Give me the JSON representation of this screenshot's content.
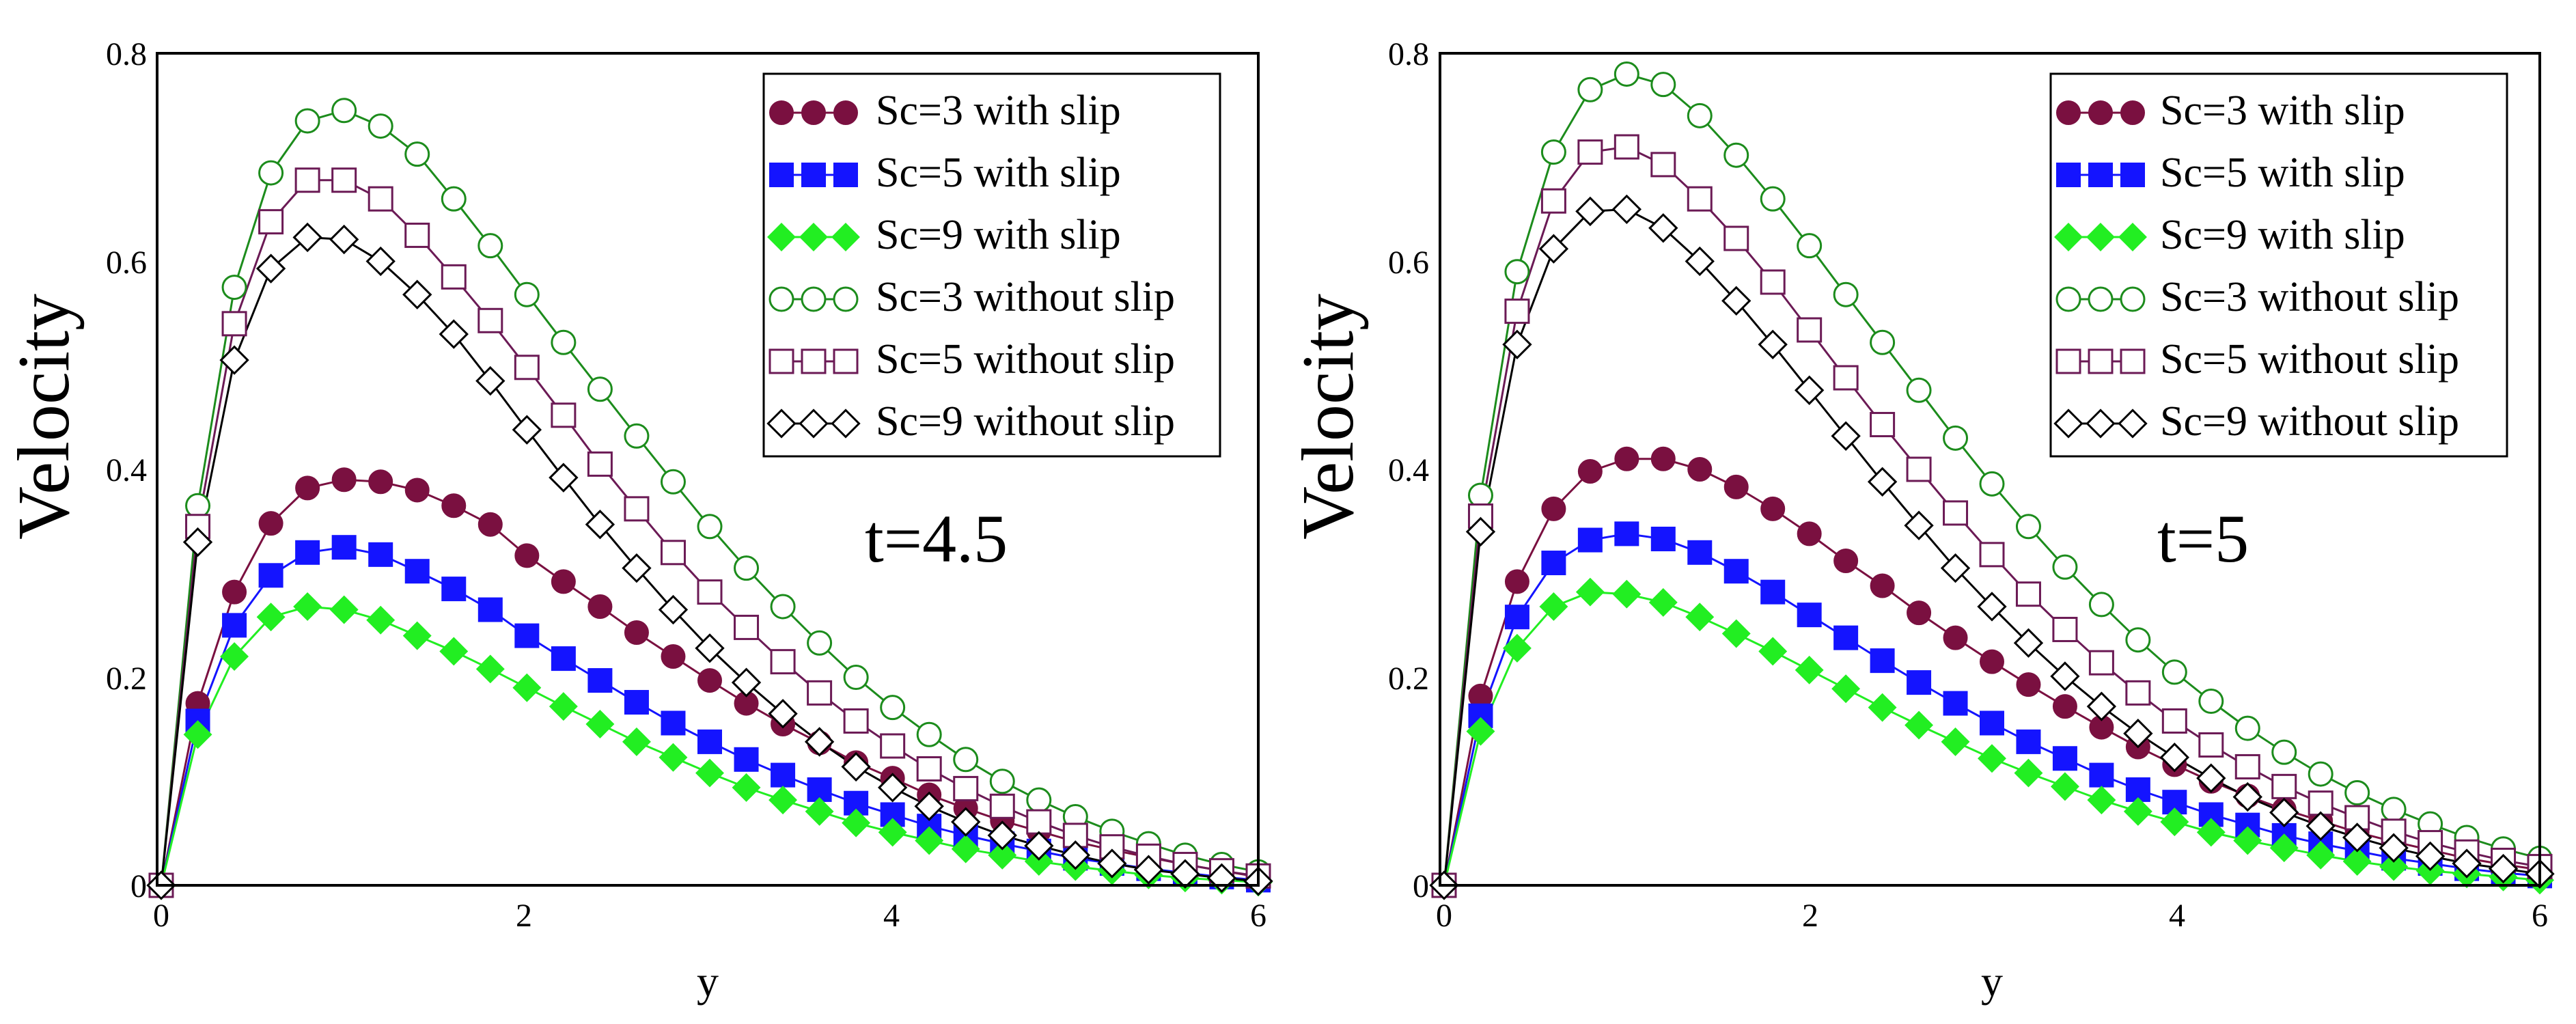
{
  "chart_data": [
    {
      "type": "line",
      "title": "",
      "annotation": "t=4.5",
      "xlabel": "y",
      "ylabel": "Velocity",
      "xlim": [
        0,
        6
      ],
      "ylim": [
        0,
        0.8
      ],
      "xticks": [
        "0",
        "2",
        "4",
        "6"
      ],
      "yticks": [
        "0",
        "0.2",
        "0.4",
        "0.6",
        "0.8"
      ],
      "grid": false,
      "legend_position": "top-right",
      "x": [
        0,
        0.2,
        0.4,
        0.6,
        0.8,
        1.0,
        1.2,
        1.4,
        1.6,
        1.8,
        2.0,
        2.2,
        2.4,
        2.6,
        2.8,
        3.0,
        3.2,
        3.4,
        3.6,
        3.8,
        4.0,
        4.2,
        4.4,
        4.6,
        4.8,
        5.0,
        5.2,
        5.4,
        5.6,
        5.8,
        6.0
      ],
      "series": [
        {
          "name": "Sc=3  with slip",
          "color": "#7a1040",
          "marker": "filled-circle",
          "values": [
            0,
            0.175,
            0.282,
            0.348,
            0.382,
            0.39,
            0.388,
            0.38,
            0.365,
            0.347,
            0.317,
            0.292,
            0.268,
            0.243,
            0.22,
            0.197,
            0.175,
            0.155,
            0.137,
            0.118,
            0.103,
            0.087,
            0.074,
            0.062,
            0.052,
            0.042,
            0.034,
            0.027,
            0.02,
            0.014,
            0.008
          ]
        },
        {
          "name": "Sc=5 with slip",
          "color": "#1414ff",
          "marker": "filled-square",
          "values": [
            0,
            0.158,
            0.25,
            0.298,
            0.32,
            0.325,
            0.318,
            0.302,
            0.285,
            0.265,
            0.24,
            0.218,
            0.197,
            0.176,
            0.156,
            0.138,
            0.121,
            0.106,
            0.092,
            0.079,
            0.068,
            0.057,
            0.048,
            0.04,
            0.033,
            0.026,
            0.021,
            0.016,
            0.012,
            0.008,
            0.005
          ]
        },
        {
          "name": "Sc=9 with slip",
          "color": "#22ee22",
          "marker": "filled-diamond",
          "values": [
            0,
            0.145,
            0.22,
            0.258,
            0.268,
            0.265,
            0.255,
            0.24,
            0.225,
            0.208,
            0.19,
            0.172,
            0.155,
            0.138,
            0.123,
            0.108,
            0.094,
            0.082,
            0.071,
            0.06,
            0.051,
            0.043,
            0.035,
            0.029,
            0.023,
            0.018,
            0.014,
            0.01,
            0.007,
            0.005,
            0.003
          ]
        },
        {
          "name": "Sc=3 without slip",
          "color": "#1c8c1c",
          "marker": "open-circle",
          "values": [
            0,
            0.365,
            0.575,
            0.685,
            0.735,
            0.745,
            0.73,
            0.703,
            0.66,
            0.615,
            0.568,
            0.522,
            0.477,
            0.432,
            0.388,
            0.345,
            0.305,
            0.268,
            0.233,
            0.2,
            0.171,
            0.145,
            0.121,
            0.1,
            0.082,
            0.066,
            0.052,
            0.04,
            0.029,
            0.02,
            0.013
          ]
        },
        {
          "name": "Sc=5 without slip",
          "color": "#6b1a55",
          "marker": "open-square",
          "values": [
            0,
            0.345,
            0.54,
            0.638,
            0.678,
            0.678,
            0.66,
            0.625,
            0.585,
            0.543,
            0.498,
            0.452,
            0.405,
            0.362,
            0.32,
            0.282,
            0.248,
            0.215,
            0.185,
            0.158,
            0.134,
            0.112,
            0.093,
            0.076,
            0.061,
            0.048,
            0.037,
            0.028,
            0.02,
            0.014,
            0.009
          ]
        },
        {
          "name": "Sc=9 without slip",
          "color": "#000000",
          "marker": "open-diamond",
          "values": [
            0,
            0.33,
            0.505,
            0.593,
            0.623,
            0.621,
            0.6,
            0.568,
            0.53,
            0.485,
            0.438,
            0.392,
            0.347,
            0.305,
            0.265,
            0.228,
            0.195,
            0.165,
            0.138,
            0.114,
            0.094,
            0.076,
            0.061,
            0.048,
            0.038,
            0.029,
            0.021,
            0.015,
            0.011,
            0.007,
            0.004
          ]
        }
      ]
    },
    {
      "type": "line",
      "title": "",
      "annotation": "t=5",
      "xlabel": "y",
      "ylabel": "Velocity",
      "xlim": [
        0,
        6
      ],
      "ylim": [
        0,
        0.8
      ],
      "xticks": [
        "0",
        "2",
        "4",
        "6"
      ],
      "yticks": [
        "0",
        "0.2",
        "0.4",
        "0.6",
        "0.8"
      ],
      "grid": false,
      "legend_position": "top-right",
      "x": [
        0,
        0.2,
        0.4,
        0.6,
        0.8,
        1.0,
        1.2,
        1.4,
        1.6,
        1.8,
        2.0,
        2.2,
        2.4,
        2.6,
        2.8,
        3.0,
        3.2,
        3.4,
        3.6,
        3.8,
        4.0,
        4.2,
        4.4,
        4.6,
        4.8,
        5.0,
        5.2,
        5.4,
        5.6,
        5.8,
        6.0
      ],
      "series": [
        {
          "name": "Sc=3  with slip",
          "color": "#7a1040",
          "marker": "filled-circle",
          "values": [
            0,
            0.182,
            0.292,
            0.362,
            0.398,
            0.41,
            0.41,
            0.4,
            0.383,
            0.362,
            0.338,
            0.312,
            0.288,
            0.262,
            0.238,
            0.215,
            0.193,
            0.172,
            0.152,
            0.133,
            0.116,
            0.1,
            0.086,
            0.073,
            0.062,
            0.051,
            0.042,
            0.034,
            0.026,
            0.02,
            0.015
          ]
        },
        {
          "name": "Sc=5 with slip",
          "color": "#1414ff",
          "marker": "filled-square",
          "values": [
            0,
            0.163,
            0.258,
            0.31,
            0.332,
            0.338,
            0.333,
            0.32,
            0.302,
            0.282,
            0.26,
            0.238,
            0.216,
            0.195,
            0.175,
            0.156,
            0.138,
            0.122,
            0.106,
            0.092,
            0.08,
            0.068,
            0.058,
            0.048,
            0.04,
            0.033,
            0.026,
            0.021,
            0.016,
            0.012,
            0.009
          ]
        },
        {
          "name": "Sc=9 with slip",
          "color": "#22ee22",
          "marker": "filled-diamond",
          "values": [
            0,
            0.148,
            0.228,
            0.268,
            0.282,
            0.28,
            0.272,
            0.258,
            0.242,
            0.225,
            0.207,
            0.189,
            0.171,
            0.154,
            0.138,
            0.122,
            0.108,
            0.095,
            0.082,
            0.071,
            0.061,
            0.051,
            0.043,
            0.036,
            0.029,
            0.023,
            0.018,
            0.014,
            0.011,
            0.008,
            0.005
          ]
        },
        {
          "name": "Sc=3 without slip",
          "color": "#1c8c1c",
          "marker": "open-circle",
          "values": [
            0,
            0.375,
            0.59,
            0.705,
            0.765,
            0.78,
            0.77,
            0.74,
            0.702,
            0.66,
            0.615,
            0.568,
            0.522,
            0.476,
            0.43,
            0.386,
            0.345,
            0.306,
            0.27,
            0.236,
            0.205,
            0.177,
            0.151,
            0.128,
            0.107,
            0.089,
            0.073,
            0.059,
            0.046,
            0.035,
            0.026
          ]
        },
        {
          "name": "Sc=5 without slip",
          "color": "#6b1a55",
          "marker": "open-square",
          "values": [
            0,
            0.355,
            0.552,
            0.658,
            0.705,
            0.71,
            0.693,
            0.66,
            0.622,
            0.58,
            0.534,
            0.488,
            0.443,
            0.4,
            0.358,
            0.318,
            0.28,
            0.246,
            0.214,
            0.185,
            0.158,
            0.135,
            0.114,
            0.095,
            0.079,
            0.065,
            0.052,
            0.041,
            0.032,
            0.024,
            0.018
          ]
        },
        {
          "name": "Sc=9 without slip",
          "color": "#000000",
          "marker": "open-diamond",
          "values": [
            0,
            0.34,
            0.52,
            0.612,
            0.648,
            0.65,
            0.632,
            0.6,
            0.562,
            0.52,
            0.476,
            0.432,
            0.388,
            0.346,
            0.305,
            0.268,
            0.233,
            0.201,
            0.172,
            0.146,
            0.123,
            0.103,
            0.085,
            0.07,
            0.057,
            0.046,
            0.036,
            0.028,
            0.021,
            0.016,
            0.011
          ]
        }
      ]
    }
  ]
}
